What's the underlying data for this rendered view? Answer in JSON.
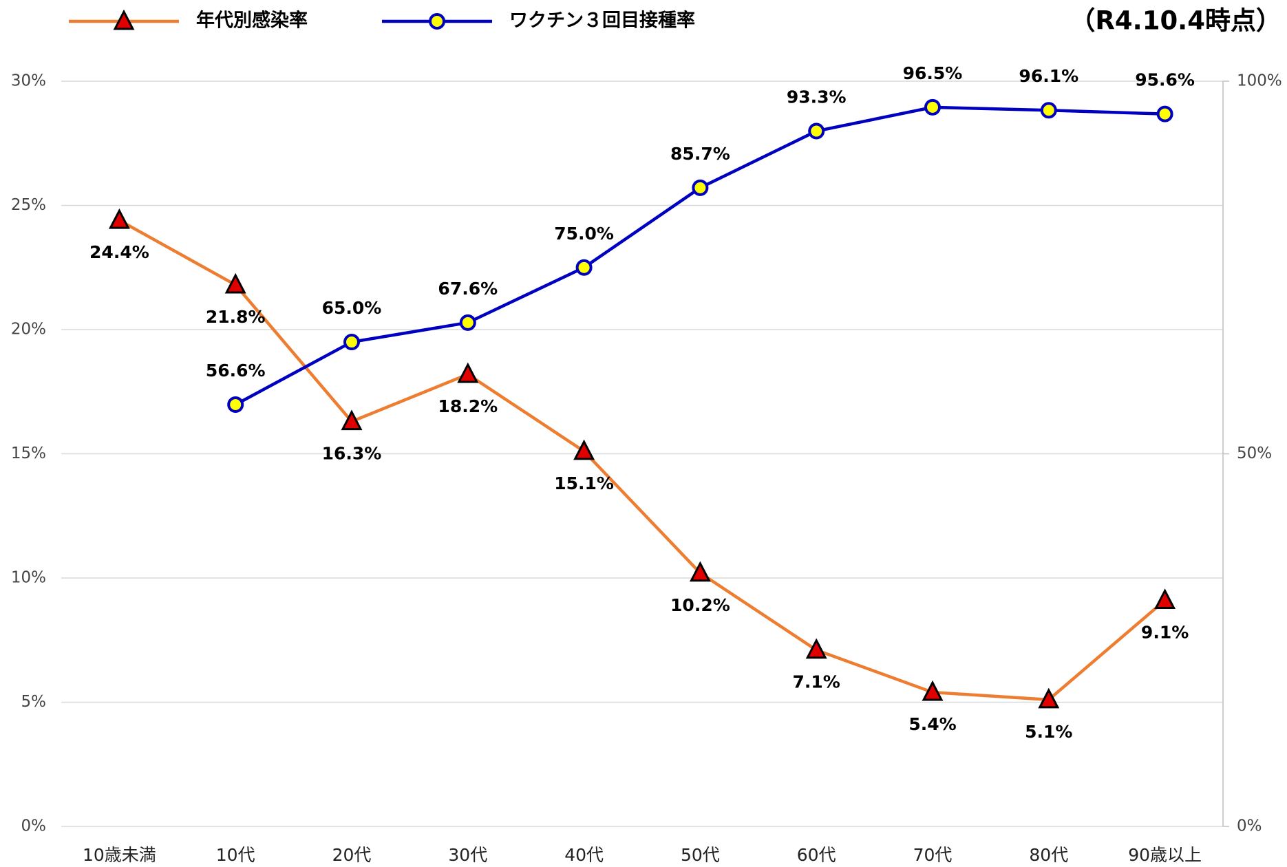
{
  "chart_data": {
    "type": "line",
    "title": "（R4.10.4時点）",
    "categories": [
      "10歳未満",
      "10代",
      "20代",
      "30代",
      "40代",
      "50代",
      "60代",
      "70代",
      "80代",
      "90歳以上"
    ],
    "series": [
      {
        "name": "年代別感染率",
        "color": "#ed7d31",
        "marker": "triangle",
        "label_pos": "below",
        "values": [
          24.4,
          21.8,
          16.3,
          18.2,
          15.1,
          10.2,
          7.1,
          5.4,
          5.1,
          9.1
        ],
        "value_labels": [
          "24.4%",
          "21.8%",
          "16.3%",
          "18.2%",
          "15.1%",
          "10.2%",
          "7.1%",
          "5.4%",
          "5.1%",
          "9.1%"
        ]
      },
      {
        "name": "ワクチン３回目接種率",
        "color": "#0000c0",
        "marker": "circle",
        "axis": "y2",
        "label_pos": "above",
        "values": [
          null,
          56.6,
          65.0,
          67.6,
          75.0,
          85.7,
          93.3,
          96.5,
          96.1,
          95.6
        ],
        "value_labels": [
          null,
          "56.6%",
          "65.0%",
          "67.6%",
          "75.0%",
          "85.7%",
          "93.3%",
          "96.5%",
          "96.1%",
          "95.6%"
        ]
      }
    ],
    "ylim": [
      0,
      30
    ],
    "yticks": [
      {
        "value": 0,
        "label": "0%"
      },
      {
        "value": 5,
        "label": "5%"
      },
      {
        "value": 10,
        "label": "10%"
      },
      {
        "value": 15,
        "label": "15%"
      },
      {
        "value": 20,
        "label": "20%"
      },
      {
        "value": 25,
        "label": "25%"
      },
      {
        "value": 30,
        "label": "30%"
      }
    ],
    "y2lim": [
      0,
      100
    ],
    "y2ticks": [
      {
        "value": 0,
        "label": "0%"
      },
      {
        "value": 50,
        "label": "50%"
      },
      {
        "value": 100,
        "label": "100%"
      }
    ],
    "grid": true,
    "legend": "top-left"
  }
}
